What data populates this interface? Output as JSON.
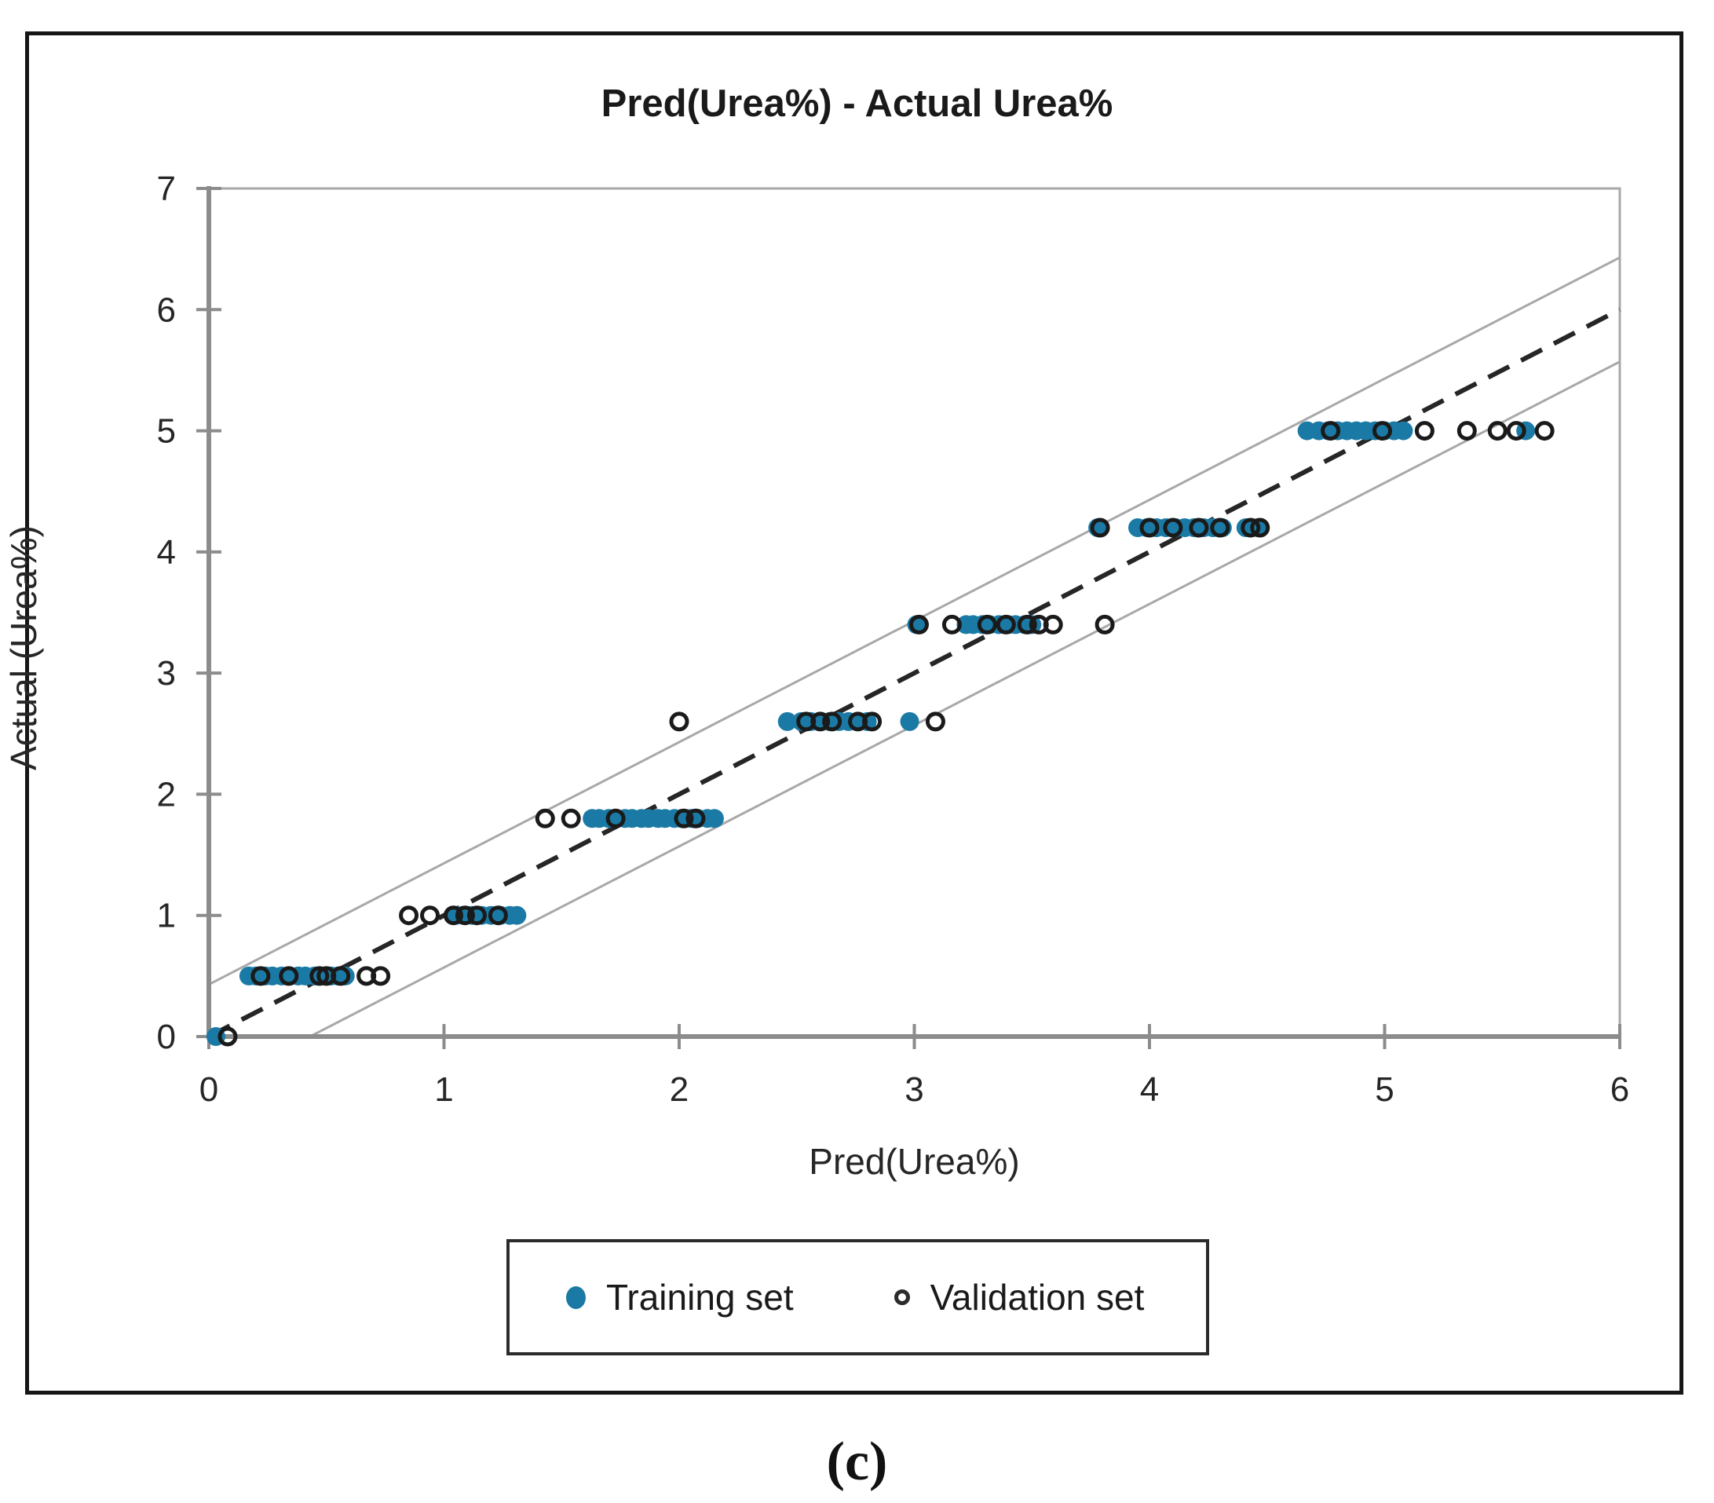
{
  "figure": {
    "caption": "(c)"
  },
  "legend": {
    "items": [
      {
        "label": "Training set",
        "marker": "filled-circle",
        "color": "#1b7aa5"
      },
      {
        "label": "Validation set",
        "marker": "open-circle",
        "color": "#2b2b2b"
      }
    ]
  },
  "chart_data": {
    "type": "scatter",
    "title": "Pred(Urea%) - Actual Urea%",
    "xlabel": "Pred(Urea%)",
    "ylabel": "Actual (Urea%)",
    "xlim": [
      0,
      6
    ],
    "ylim": [
      0,
      7
    ],
    "x_ticks": [
      0,
      1,
      2,
      3,
      4,
      5,
      6
    ],
    "y_ticks": [
      0,
      1,
      2,
      3,
      4,
      5,
      6,
      7
    ],
    "grid": false,
    "legend_position": "bottom",
    "reference_lines": [
      {
        "name": "identity-line",
        "style": "dashed",
        "color": "#262626",
        "from": [
          0,
          0
        ],
        "to": [
          6,
          6
        ]
      },
      {
        "name": "upper-band-line",
        "style": "solid",
        "color": "#a8a8a8",
        "from": [
          0,
          0.43
        ],
        "to": [
          6,
          6.43
        ]
      },
      {
        "name": "lower-band-line",
        "style": "solid",
        "color": "#a8a8a8",
        "from": [
          0.43,
          0
        ],
        "to": [
          6,
          5.57
        ]
      }
    ],
    "series": [
      {
        "name": "Training set",
        "marker": "filled-circle",
        "color": "#1b7aa5",
        "points": [
          [
            0.03,
            0
          ],
          [
            0.17,
            0.5
          ],
          [
            0.2,
            0.5
          ],
          [
            0.24,
            0.5
          ],
          [
            0.27,
            0.5
          ],
          [
            0.31,
            0.5
          ],
          [
            0.34,
            0.5
          ],
          [
            0.38,
            0.5
          ],
          [
            0.41,
            0.5
          ],
          [
            0.45,
            0.5
          ],
          [
            0.48,
            0.5
          ],
          [
            0.52,
            0.5
          ],
          [
            0.55,
            0.5
          ],
          [
            0.58,
            0.5
          ],
          [
            1.05,
            1
          ],
          [
            1.08,
            1
          ],
          [
            1.12,
            1
          ],
          [
            1.16,
            1
          ],
          [
            1.2,
            1
          ],
          [
            1.24,
            1
          ],
          [
            1.28,
            1
          ],
          [
            1.31,
            1
          ],
          [
            1.63,
            1.8
          ],
          [
            1.66,
            1.8
          ],
          [
            1.7,
            1.8
          ],
          [
            1.73,
            1.8
          ],
          [
            1.77,
            1.8
          ],
          [
            1.8,
            1.8
          ],
          [
            1.84,
            1.8
          ],
          [
            1.87,
            1.8
          ],
          [
            1.91,
            1.8
          ],
          [
            1.94,
            1.8
          ],
          [
            1.98,
            1.8
          ],
          [
            2.01,
            1.8
          ],
          [
            2.05,
            1.8
          ],
          [
            2.08,
            1.8
          ],
          [
            2.12,
            1.8
          ],
          [
            2.15,
            1.8
          ],
          [
            2.46,
            2.6
          ],
          [
            2.52,
            2.6
          ],
          [
            2.56,
            2.6
          ],
          [
            2.6,
            2.6
          ],
          [
            2.64,
            2.6
          ],
          [
            2.68,
            2.6
          ],
          [
            2.72,
            2.6
          ],
          [
            2.76,
            2.6
          ],
          [
            2.8,
            2.6
          ],
          [
            2.98,
            2.6
          ],
          [
            3.01,
            3.4
          ],
          [
            3.22,
            3.4
          ],
          [
            3.25,
            3.4
          ],
          [
            3.29,
            3.4
          ],
          [
            3.32,
            3.4
          ],
          [
            3.36,
            3.4
          ],
          [
            3.4,
            3.4
          ],
          [
            3.43,
            3.4
          ],
          [
            3.47,
            3.4
          ],
          [
            3.5,
            3.4
          ],
          [
            3.78,
            4.2
          ],
          [
            3.95,
            4.2
          ],
          [
            3.99,
            4.2
          ],
          [
            4.03,
            4.2
          ],
          [
            4.07,
            4.2
          ],
          [
            4.11,
            4.2
          ],
          [
            4.15,
            4.2
          ],
          [
            4.19,
            4.2
          ],
          [
            4.23,
            4.2
          ],
          [
            4.27,
            4.2
          ],
          [
            4.31,
            4.2
          ],
          [
            4.41,
            4.2
          ],
          [
            4.46,
            4.2
          ],
          [
            4.67,
            5
          ],
          [
            4.72,
            5
          ],
          [
            4.76,
            5
          ],
          [
            4.8,
            5
          ],
          [
            4.84,
            5
          ],
          [
            4.88,
            5
          ],
          [
            4.92,
            5
          ],
          [
            4.96,
            5
          ],
          [
            5.0,
            5
          ],
          [
            5.04,
            5
          ],
          [
            5.08,
            5
          ],
          [
            5.6,
            5
          ]
        ]
      },
      {
        "name": "Validation set",
        "marker": "open-circle",
        "color": "#1a1a1a",
        "points": [
          [
            0.08,
            0
          ],
          [
            0.22,
            0.5
          ],
          [
            0.34,
            0.5
          ],
          [
            0.47,
            0.5
          ],
          [
            0.5,
            0.5
          ],
          [
            0.56,
            0.5
          ],
          [
            0.67,
            0.5
          ],
          [
            0.73,
            0.5
          ],
          [
            0.85,
            1
          ],
          [
            0.94,
            1
          ],
          [
            1.04,
            1
          ],
          [
            1.09,
            1
          ],
          [
            1.14,
            1
          ],
          [
            1.23,
            1
          ],
          [
            1.43,
            1.8
          ],
          [
            1.54,
            1.8
          ],
          [
            1.73,
            1.8
          ],
          [
            2.02,
            1.8
          ],
          [
            2.07,
            1.8
          ],
          [
            2.0,
            2.6
          ],
          [
            2.54,
            2.6
          ],
          [
            2.6,
            2.6
          ],
          [
            2.65,
            2.6
          ],
          [
            2.76,
            2.6
          ],
          [
            2.82,
            2.6
          ],
          [
            3.09,
            2.6
          ],
          [
            3.02,
            3.4
          ],
          [
            3.16,
            3.4
          ],
          [
            3.31,
            3.4
          ],
          [
            3.39,
            3.4
          ],
          [
            3.48,
            3.4
          ],
          [
            3.53,
            3.4
          ],
          [
            3.59,
            3.4
          ],
          [
            3.81,
            3.4
          ],
          [
            3.79,
            4.2
          ],
          [
            4.0,
            4.2
          ],
          [
            4.1,
            4.2
          ],
          [
            4.21,
            4.2
          ],
          [
            4.3,
            4.2
          ],
          [
            4.43,
            4.2
          ],
          [
            4.47,
            4.2
          ],
          [
            4.77,
            5
          ],
          [
            4.99,
            5
          ],
          [
            5.17,
            5
          ],
          [
            5.35,
            5
          ],
          [
            5.48,
            5
          ],
          [
            5.56,
            5
          ],
          [
            5.68,
            5
          ]
        ]
      }
    ]
  }
}
